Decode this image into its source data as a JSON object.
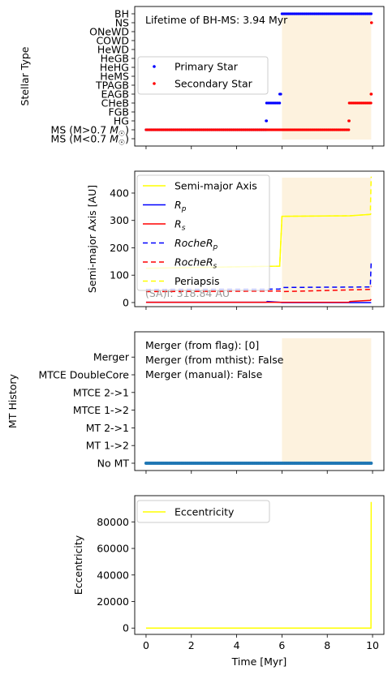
{
  "chart_data": [
    {
      "type": "scatter",
      "ylabel": "Stellar Type",
      "xlim": [
        -0.5,
        10.5
      ],
      "x_ticks": [
        0,
        2,
        4,
        6,
        8,
        10
      ],
      "y_categories": [
        "MS (M<0.7 M☉)",
        "MS (M>0.7 M☉)",
        "HG",
        "FGB",
        "CHeB",
        "EAGB",
        "TPAGB",
        "HeMS",
        "HeHG",
        "HeGB",
        "HeWD",
        "COWD",
        "ONeWD",
        "NS",
        "BH"
      ],
      "annotation": "Lifetime of BH-MS: 3.94 Myr",
      "shaded_x": [
        6.0,
        9.94
      ],
      "legend_position": "center-left",
      "series": [
        {
          "name": "Primary Star",
          "color": "#0000ff",
          "segments": [
            {
              "x": [
                0,
                5.3
              ],
              "y": "MS (M>0.7 M☉)"
            },
            {
              "x": [
                5.3,
                5.32
              ],
              "y": "HG"
            },
            {
              "x": [
                5.32,
                5.9
              ],
              "y": "CHeB"
            },
            {
              "x": [
                5.9,
                5.95
              ],
              "y": "EAGB"
            },
            {
              "x": [
                6.0,
                9.94
              ],
              "y": "BH"
            }
          ]
        },
        {
          "name": "Secondary Star",
          "color": "#ff0000",
          "segments": [
            {
              "x": [
                0,
                8.95
              ],
              "y": "MS (M>0.7 M☉)"
            },
            {
              "x": [
                8.95,
                8.97
              ],
              "y": "HG"
            },
            {
              "x": [
                8.97,
                9.93
              ],
              "y": "CHeB"
            },
            {
              "x": [
                9.93,
                9.95
              ],
              "y": "EAGB"
            },
            {
              "x": [
                9.95,
                9.96
              ],
              "y": "NS"
            }
          ]
        }
      ]
    },
    {
      "type": "line",
      "ylabel": "Semi-major Axis [AU]",
      "xlim": [
        -0.5,
        10.5
      ],
      "ylim": [
        -15,
        480
      ],
      "y_ticks": [
        0,
        100,
        200,
        300,
        400
      ],
      "annotation": "(SA)f: 318.84 AU",
      "shaded_x": [
        6.0,
        9.94
      ],
      "legend_position": "upper-left",
      "series": [
        {
          "name": "Semi-major Axis",
          "color": "#ffff00",
          "dash": "solid",
          "x": [
            0,
            5.9,
            6.0,
            9.0,
            9.9,
            9.94
          ],
          "y": [
            125,
            133,
            315,
            317,
            322,
            325
          ]
        },
        {
          "name": "R_p",
          "color": "#0000ff",
          "dash": "solid",
          "x": [
            0,
            5.3,
            5.35,
            5.9,
            6.0,
            9.94
          ],
          "y": [
            1,
            1,
            4,
            1,
            0,
            0
          ]
        },
        {
          "name": "R_s",
          "color": "#ff0000",
          "dash": "solid",
          "x": [
            0,
            8.95,
            9.0,
            9.9,
            9.94
          ],
          "y": [
            1,
            1,
            4,
            8,
            12
          ]
        },
        {
          "name": "RocheR_p",
          "color": "#0000ff",
          "dash": "dashed",
          "x": [
            0,
            5.9,
            6.0,
            9.9,
            9.94
          ],
          "y": [
            48,
            49,
            55,
            57,
            150
          ]
        },
        {
          "name": "RocheR_s",
          "color": "#ff0000",
          "dash": "dashed",
          "x": [
            0,
            5.9,
            6.0,
            9.9,
            9.94
          ],
          "y": [
            40,
            42,
            40,
            48,
            60
          ]
        },
        {
          "name": "Periapsis",
          "color": "#ffff00",
          "dash": "dashed",
          "x": [
            0,
            5.9,
            6.0,
            9.0,
            9.9,
            9.94
          ],
          "y": [
            125,
            133,
            315,
            317,
            322,
            460
          ]
        }
      ]
    },
    {
      "type": "scatter",
      "ylabel": "MT History",
      "xlim": [
        -0.5,
        10.5
      ],
      "y_categories": [
        "No MT",
        "MT 1->2",
        "MT 2->1",
        "MTCE 1->2",
        "MTCE 2->1",
        "MTCE DoubleCore",
        "Merger"
      ],
      "annotations": [
        "Merger (from flag): [0]",
        "Merger (from mthist): False",
        "Merger (manual): False"
      ],
      "shaded_x": [
        6.0,
        9.94
      ],
      "series": [
        {
          "name": "MT History",
          "color": "#1f77b4",
          "x": [
            0,
            9.94
          ],
          "y": "No MT"
        }
      ]
    },
    {
      "type": "line",
      "ylabel": "Eccentricity",
      "xlabel": "Time [Myr]",
      "xlim": [
        -0.5,
        10.5
      ],
      "ylim": [
        -4750,
        99750
      ],
      "x_ticks": [
        0,
        2,
        4,
        6,
        8,
        10
      ],
      "y_ticks": [
        0,
        20000,
        40000,
        60000,
        80000
      ],
      "legend_position": "upper-left",
      "series": [
        {
          "name": "Eccentricity",
          "color": "#ffff00",
          "x": [
            0,
            9.9,
            9.93,
            9.94
          ],
          "y": [
            0,
            0,
            0,
            95000
          ]
        }
      ]
    }
  ]
}
